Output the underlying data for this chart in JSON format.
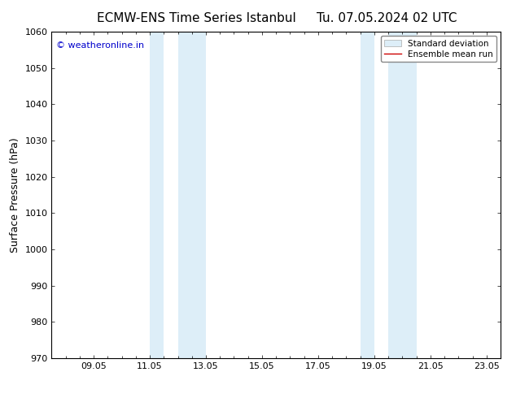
{
  "title_left": "ECMW-ENS Time Series Istanbul",
  "title_right": "Tu. 07.05.2024 02 UTC",
  "ylabel": "Surface Pressure (hPa)",
  "ylim": [
    970,
    1060
  ],
  "yticks": [
    970,
    980,
    990,
    1000,
    1010,
    1020,
    1030,
    1040,
    1050,
    1060
  ],
  "xlim": [
    7.5,
    23.5
  ],
  "xtick_labels": [
    "09.05",
    "11.05",
    "13.05",
    "15.05",
    "17.05",
    "19.05",
    "21.05",
    "23.05"
  ],
  "xtick_positions": [
    9,
    11,
    13,
    15,
    17,
    19,
    21,
    23
  ],
  "shaded_bands": [
    {
      "xmin": 11.0,
      "xmax": 11.5
    },
    {
      "xmin": 12.0,
      "xmax": 13.0
    },
    {
      "xmin": 18.5,
      "xmax": 19.0
    },
    {
      "xmin": 19.5,
      "xmax": 20.5
    }
  ],
  "shaded_color": "#ddeef8",
  "watermark_text": "© weatheronline.in",
  "watermark_color": "#0000cc",
  "legend_std_color": "#ddeef8",
  "legend_mean_color": "#cc0000",
  "bg_color": "#ffffff",
  "tick_label_fontsize": 8,
  "title_fontsize": 11,
  "ylabel_fontsize": 9
}
